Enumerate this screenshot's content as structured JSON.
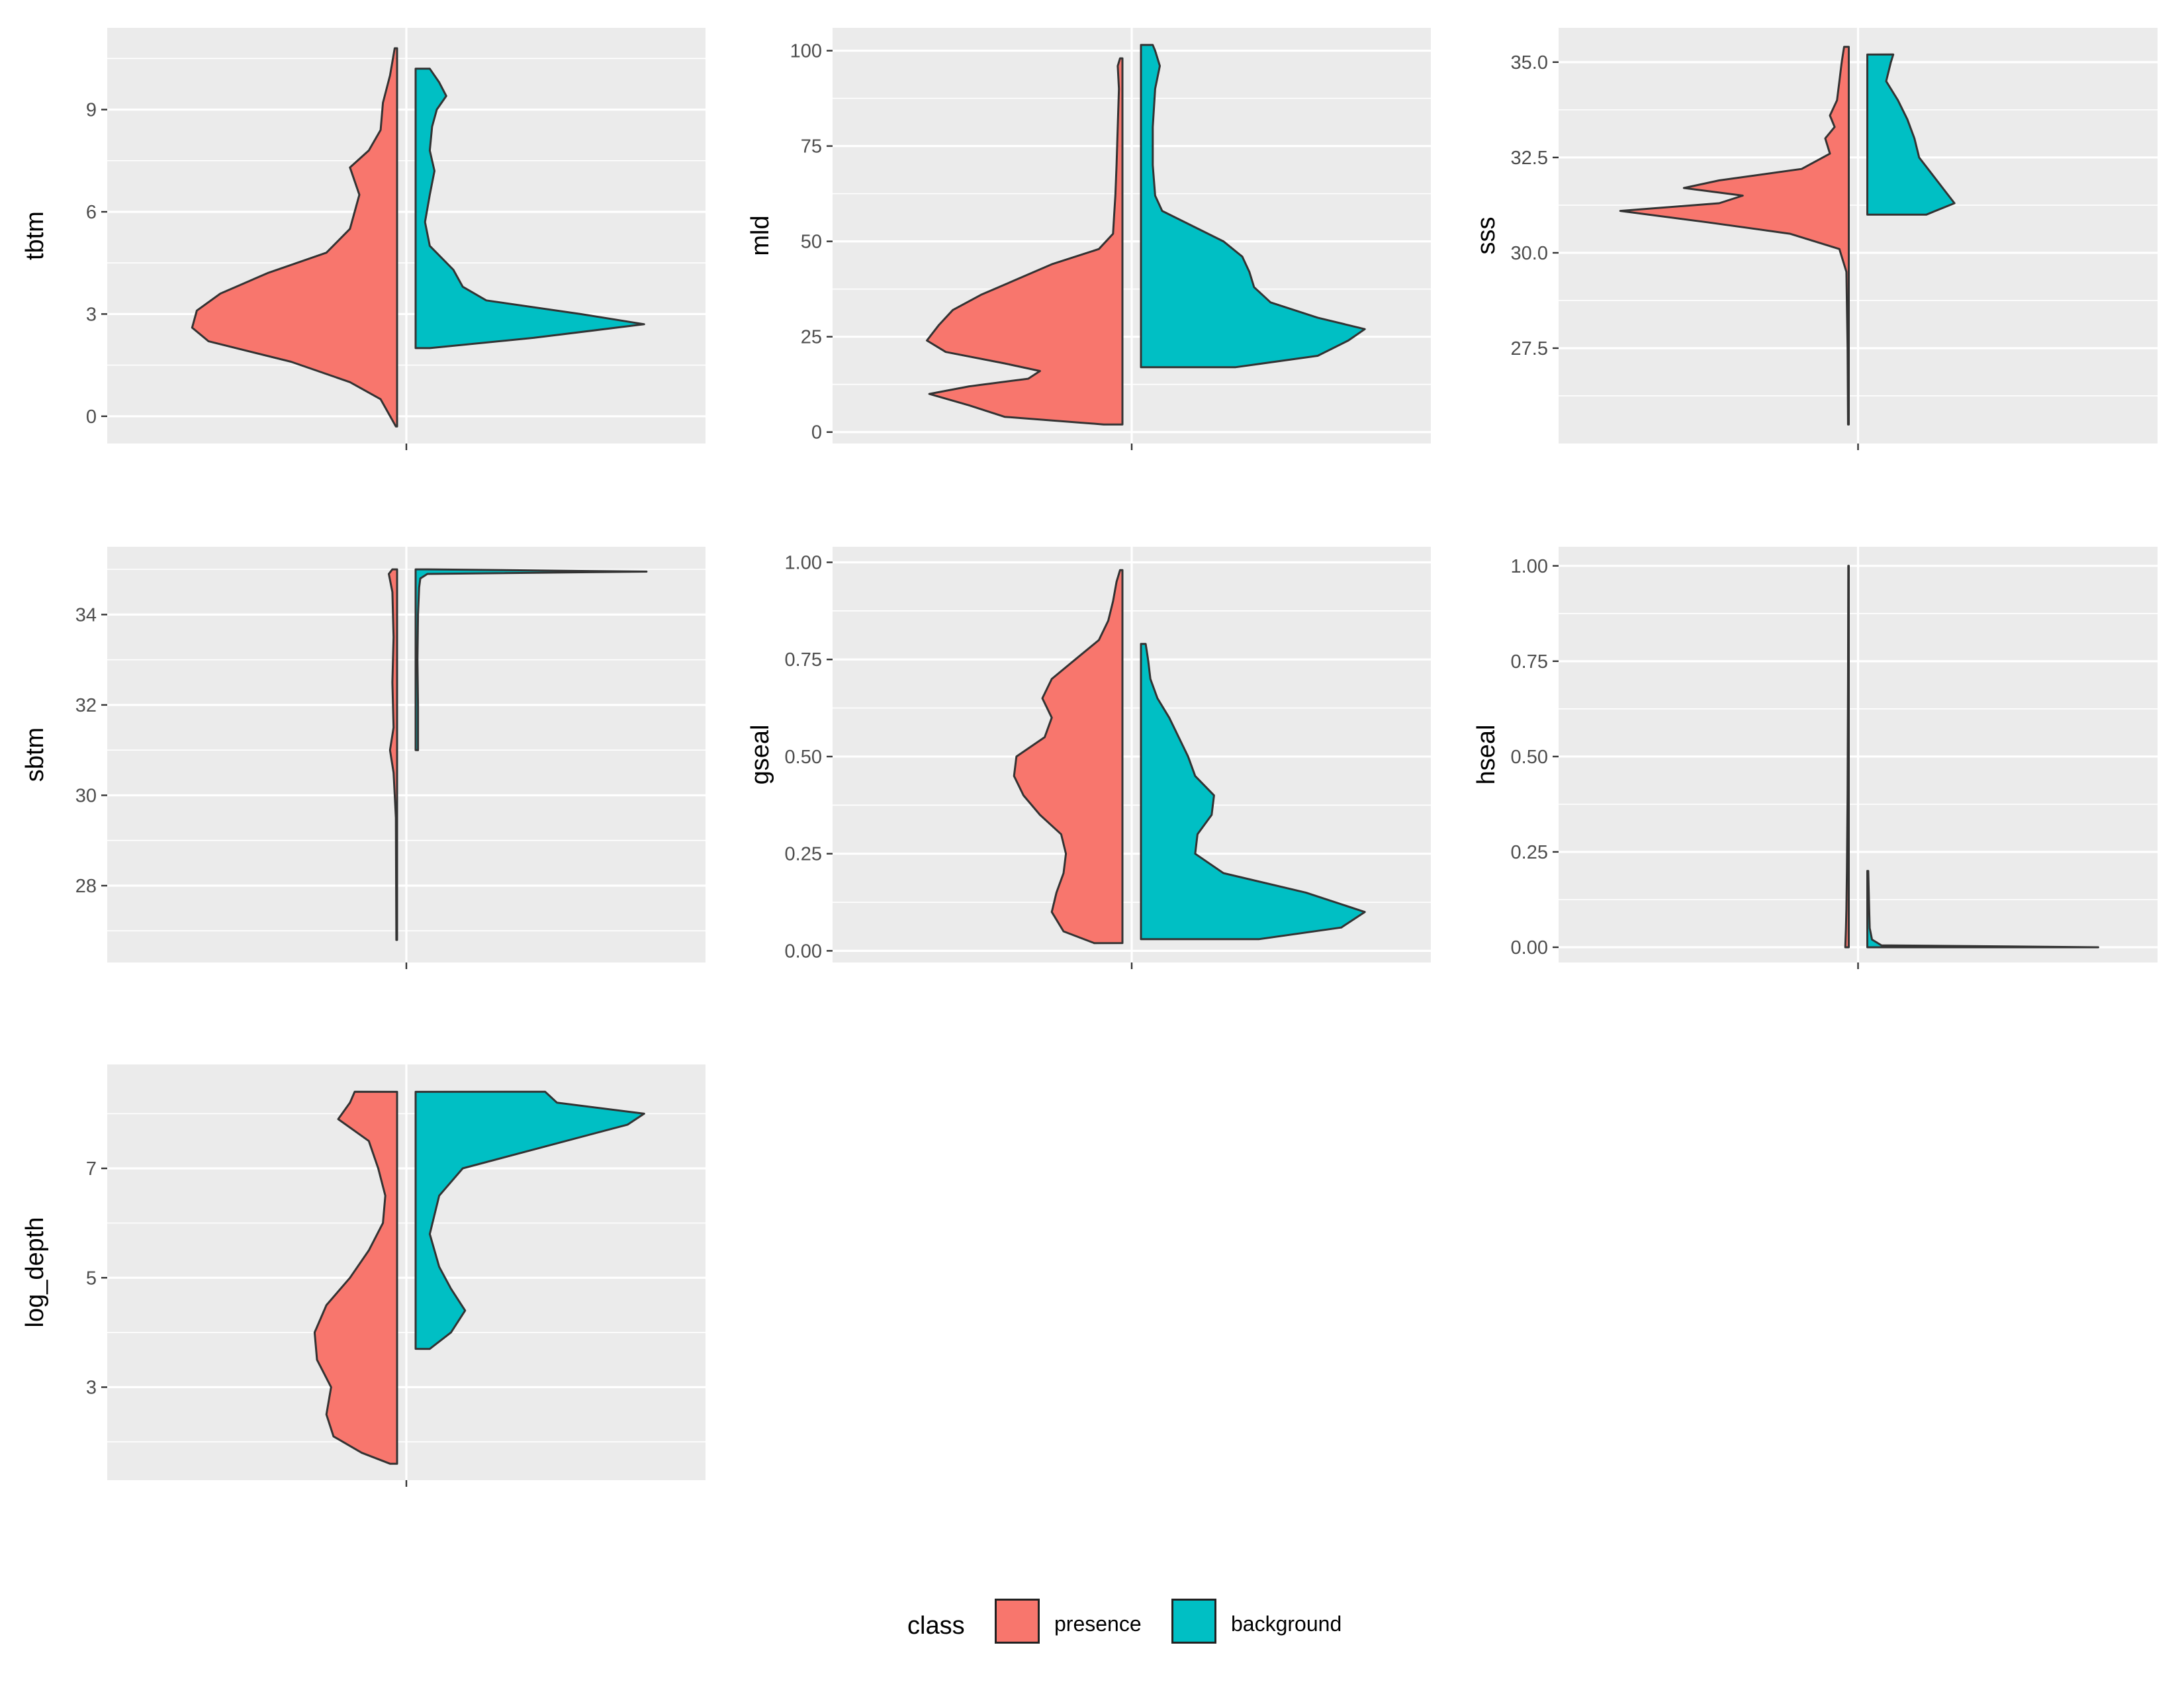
{
  "legend": {
    "title": "class",
    "items": [
      {
        "label": "presence",
        "color": "#F8766D"
      },
      {
        "label": "background",
        "color": "#00BFC4"
      }
    ]
  },
  "chart_data": [
    {
      "type": "violin",
      "variable": "tbtm",
      "ylabel": "tbtm",
      "ylim": [
        -0.8,
        11.4
      ],
      "yticks": [
        0,
        3,
        6,
        9
      ],
      "ytick_labels": [
        "0",
        "3",
        "6",
        "9"
      ],
      "series": [
        {
          "name": "presence",
          "density": [
            [
              -0.3,
              0.005
            ],
            [
              0.5,
              0.07
            ],
            [
              1.0,
              0.2
            ],
            [
              1.6,
              0.45
            ],
            [
              2.2,
              0.8
            ],
            [
              2.6,
              0.87
            ],
            [
              3.1,
              0.85
            ],
            [
              3.6,
              0.75
            ],
            [
              4.2,
              0.55
            ],
            [
              4.8,
              0.3
            ],
            [
              5.5,
              0.2
            ],
            [
              6.5,
              0.16
            ],
            [
              7.3,
              0.2
            ],
            [
              7.8,
              0.12
            ],
            [
              8.4,
              0.07
            ],
            [
              9.2,
              0.06
            ],
            [
              10.0,
              0.03
            ],
            [
              10.8,
              0.01
            ]
          ]
        },
        {
          "name": "background",
          "density": [
            [
              2.0,
              0.06
            ],
            [
              2.3,
              0.5
            ],
            [
              2.7,
              0.97
            ],
            [
              3.0,
              0.7
            ],
            [
              3.4,
              0.3
            ],
            [
              3.8,
              0.2
            ],
            [
              4.3,
              0.16
            ],
            [
              5.0,
              0.06
            ],
            [
              5.7,
              0.04
            ],
            [
              6.5,
              0.06
            ],
            [
              7.2,
              0.08
            ],
            [
              7.8,
              0.06
            ],
            [
              8.5,
              0.07
            ],
            [
              9.0,
              0.09
            ],
            [
              9.4,
              0.13
            ],
            [
              9.8,
              0.1
            ],
            [
              10.2,
              0.06
            ]
          ]
        }
      ]
    },
    {
      "type": "violin",
      "variable": "mld",
      "ylabel": "mld",
      "ylim": [
        -3,
        106
      ],
      "yticks": [
        0,
        25,
        50,
        75,
        100
      ],
      "ytick_labels": [
        "0",
        "25",
        "50",
        "75",
        "100"
      ],
      "series": [
        {
          "name": "presence",
          "density": [
            [
              2,
              0.08
            ],
            [
              4,
              0.5
            ],
            [
              7,
              0.65
            ],
            [
              10,
              0.82
            ],
            [
              12,
              0.65
            ],
            [
              14,
              0.4
            ],
            [
              16,
              0.35
            ],
            [
              18,
              0.5
            ],
            [
              21,
              0.75
            ],
            [
              24,
              0.83
            ],
            [
              28,
              0.78
            ],
            [
              32,
              0.72
            ],
            [
              36,
              0.6
            ],
            [
              40,
              0.45
            ],
            [
              44,
              0.3
            ],
            [
              48,
              0.1
            ],
            [
              52,
              0.04
            ],
            [
              57,
              0.035
            ],
            [
              62,
              0.03
            ],
            [
              70,
              0.025
            ],
            [
              80,
              0.02
            ],
            [
              90,
              0.015
            ],
            [
              96,
              0.02
            ],
            [
              98,
              0.01
            ]
          ]
        },
        {
          "name": "background",
          "density": [
            [
              17,
              0.4
            ],
            [
              20,
              0.75
            ],
            [
              24,
              0.88
            ],
            [
              27,
              0.95
            ],
            [
              30,
              0.75
            ],
            [
              34,
              0.55
            ],
            [
              38,
              0.48
            ],
            [
              42,
              0.46
            ],
            [
              46,
              0.43
            ],
            [
              50,
              0.35
            ],
            [
              54,
              0.22
            ],
            [
              58,
              0.09
            ],
            [
              62,
              0.06
            ],
            [
              70,
              0.05
            ],
            [
              80,
              0.05
            ],
            [
              90,
              0.06
            ],
            [
              96,
              0.08
            ],
            [
              100,
              0.06
            ],
            [
              101.5,
              0.05
            ]
          ]
        }
      ]
    },
    {
      "type": "violin",
      "variable": "sss",
      "ylabel": "sss",
      "ylim": [
        25.0,
        35.9
      ],
      "yticks": [
        27.5,
        30.0,
        32.5,
        35.0
      ],
      "ytick_labels": [
        "27.5",
        "30.0",
        "32.5",
        "35.0"
      ],
      "series": [
        {
          "name": "presence",
          "density": [
            [
              25.5,
              0.003
            ],
            [
              27.5,
              0.005
            ],
            [
              29.5,
              0.01
            ],
            [
              30.1,
              0.04
            ],
            [
              30.5,
              0.25
            ],
            [
              30.8,
              0.6
            ],
            [
              31.1,
              0.97
            ],
            [
              31.3,
              0.55
            ],
            [
              31.5,
              0.45
            ],
            [
              31.7,
              0.7
            ],
            [
              31.9,
              0.55
            ],
            [
              32.2,
              0.2
            ],
            [
              32.6,
              0.08
            ],
            [
              33.0,
              0.1
            ],
            [
              33.3,
              0.06
            ],
            [
              33.6,
              0.08
            ],
            [
              34.0,
              0.05
            ],
            [
              34.5,
              0.04
            ],
            [
              35.0,
              0.03
            ],
            [
              35.4,
              0.02
            ]
          ]
        },
        {
          "name": "background",
          "density": [
            [
              31.0,
              0.25
            ],
            [
              31.3,
              0.37
            ],
            [
              31.7,
              0.32
            ],
            [
              32.1,
              0.27
            ],
            [
              32.5,
              0.22
            ],
            [
              33.0,
              0.2
            ],
            [
              33.5,
              0.17
            ],
            [
              34.0,
              0.13
            ],
            [
              34.5,
              0.08
            ],
            [
              35.0,
              0.1
            ],
            [
              35.2,
              0.11
            ]
          ]
        }
      ]
    },
    {
      "type": "violin",
      "variable": "sbtm",
      "ylabel": "sbtm",
      "ylim": [
        26.3,
        35.5
      ],
      "yticks": [
        28,
        30,
        32,
        34
      ],
      "ytick_labels": [
        "28",
        "30",
        "32",
        "34"
      ],
      "series": [
        {
          "name": "presence",
          "density": [
            [
              26.8,
              0.003
            ],
            [
              29.5,
              0.005
            ],
            [
              30.5,
              0.015
            ],
            [
              31.0,
              0.03
            ],
            [
              31.5,
              0.015
            ],
            [
              32.5,
              0.02
            ],
            [
              33.5,
              0.015
            ],
            [
              34.5,
              0.02
            ],
            [
              34.9,
              0.035
            ],
            [
              35.0,
              0.02
            ]
          ]
        },
        {
          "name": "background",
          "density": [
            [
              31.0,
              0.01
            ],
            [
              32.0,
              0.01
            ],
            [
              33.0,
              0.008
            ],
            [
              34.0,
              0.01
            ],
            [
              34.6,
              0.015
            ],
            [
              34.8,
              0.02
            ],
            [
              34.9,
              0.05
            ],
            [
              34.95,
              0.98
            ],
            [
              35.0,
              0.05
            ]
          ]
        }
      ]
    },
    {
      "type": "violin",
      "variable": "gseal",
      "ylabel": "gseal",
      "ylim": [
        -0.03,
        1.04
      ],
      "yticks": [
        0.0,
        0.25,
        0.5,
        0.75,
        1.0
      ],
      "ytick_labels": [
        "0.00",
        "0.25",
        "0.50",
        "0.75",
        "1.00"
      ],
      "series": [
        {
          "name": "presence",
          "density": [
            [
              0.02,
              0.12
            ],
            [
              0.05,
              0.25
            ],
            [
              0.1,
              0.3
            ],
            [
              0.15,
              0.28
            ],
            [
              0.2,
              0.25
            ],
            [
              0.25,
              0.24
            ],
            [
              0.3,
              0.26
            ],
            [
              0.35,
              0.35
            ],
            [
              0.4,
              0.42
            ],
            [
              0.45,
              0.46
            ],
            [
              0.5,
              0.45
            ],
            [
              0.55,
              0.33
            ],
            [
              0.6,
              0.3
            ],
            [
              0.65,
              0.34
            ],
            [
              0.7,
              0.3
            ],
            [
              0.75,
              0.2
            ],
            [
              0.8,
              0.1
            ],
            [
              0.85,
              0.06
            ],
            [
              0.9,
              0.04
            ],
            [
              0.95,
              0.025
            ],
            [
              0.98,
              0.01
            ]
          ]
        },
        {
          "name": "background",
          "density": [
            [
              0.03,
              0.5
            ],
            [
              0.06,
              0.85
            ],
            [
              0.1,
              0.95
            ],
            [
              0.15,
              0.7
            ],
            [
              0.2,
              0.35
            ],
            [
              0.25,
              0.23
            ],
            [
              0.3,
              0.24
            ],
            [
              0.35,
              0.3
            ],
            [
              0.4,
              0.31
            ],
            [
              0.45,
              0.23
            ],
            [
              0.5,
              0.2
            ],
            [
              0.55,
              0.16
            ],
            [
              0.6,
              0.12
            ],
            [
              0.65,
              0.07
            ],
            [
              0.7,
              0.04
            ],
            [
              0.75,
              0.03
            ],
            [
              0.79,
              0.02
            ]
          ]
        }
      ]
    },
    {
      "type": "violin",
      "variable": "hseal",
      "ylabel": "hseal",
      "ylim": [
        -0.04,
        1.05
      ],
      "yticks": [
        0.0,
        0.25,
        0.5,
        0.75,
        1.0
      ],
      "ytick_labels": [
        "0.00",
        "0.25",
        "0.50",
        "0.75",
        "1.00"
      ],
      "series": [
        {
          "name": "presence",
          "density": [
            [
              0.0,
              0.015
            ],
            [
              0.05,
              0.012
            ],
            [
              0.1,
              0.01
            ],
            [
              0.2,
              0.008
            ],
            [
              0.4,
              0.005
            ],
            [
              0.7,
              0.003
            ],
            [
              1.0,
              0.002
            ]
          ]
        },
        {
          "name": "background",
          "density": [
            [
              0.0,
              0.98
            ],
            [
              0.005,
              0.06
            ],
            [
              0.02,
              0.02
            ],
            [
              0.05,
              0.01
            ],
            [
              0.1,
              0.008
            ],
            [
              0.15,
              0.006
            ],
            [
              0.2,
              0.004
            ]
          ]
        }
      ]
    },
    {
      "type": "violin",
      "variable": "log_depth",
      "ylabel": "log_depth",
      "ylim": [
        1.3,
        8.9
      ],
      "yticks": [
        3,
        5,
        7
      ],
      "ytick_labels": [
        "3",
        "5",
        "7"
      ],
      "series": [
        {
          "name": "presence",
          "density": [
            [
              1.6,
              0.03
            ],
            [
              1.8,
              0.15
            ],
            [
              2.1,
              0.27
            ],
            [
              2.5,
              0.3
            ],
            [
              3.0,
              0.28
            ],
            [
              3.5,
              0.34
            ],
            [
              4.0,
              0.35
            ],
            [
              4.5,
              0.3
            ],
            [
              5.0,
              0.2
            ],
            [
              5.5,
              0.12
            ],
            [
              6.0,
              0.06
            ],
            [
              6.5,
              0.05
            ],
            [
              7.0,
              0.08
            ],
            [
              7.5,
              0.12
            ],
            [
              7.9,
              0.25
            ],
            [
              8.2,
              0.2
            ],
            [
              8.4,
              0.18
            ]
          ]
        },
        {
          "name": "background",
          "density": [
            [
              3.7,
              0.06
            ],
            [
              4.0,
              0.15
            ],
            [
              4.4,
              0.21
            ],
            [
              4.8,
              0.15
            ],
            [
              5.2,
              0.1
            ],
            [
              5.8,
              0.06
            ],
            [
              6.5,
              0.1
            ],
            [
              7.0,
              0.2
            ],
            [
              7.4,
              0.55
            ],
            [
              7.8,
              0.9
            ],
            [
              8.0,
              0.97
            ],
            [
              8.2,
              0.6
            ],
            [
              8.4,
              0.55
            ]
          ]
        }
      ]
    }
  ]
}
